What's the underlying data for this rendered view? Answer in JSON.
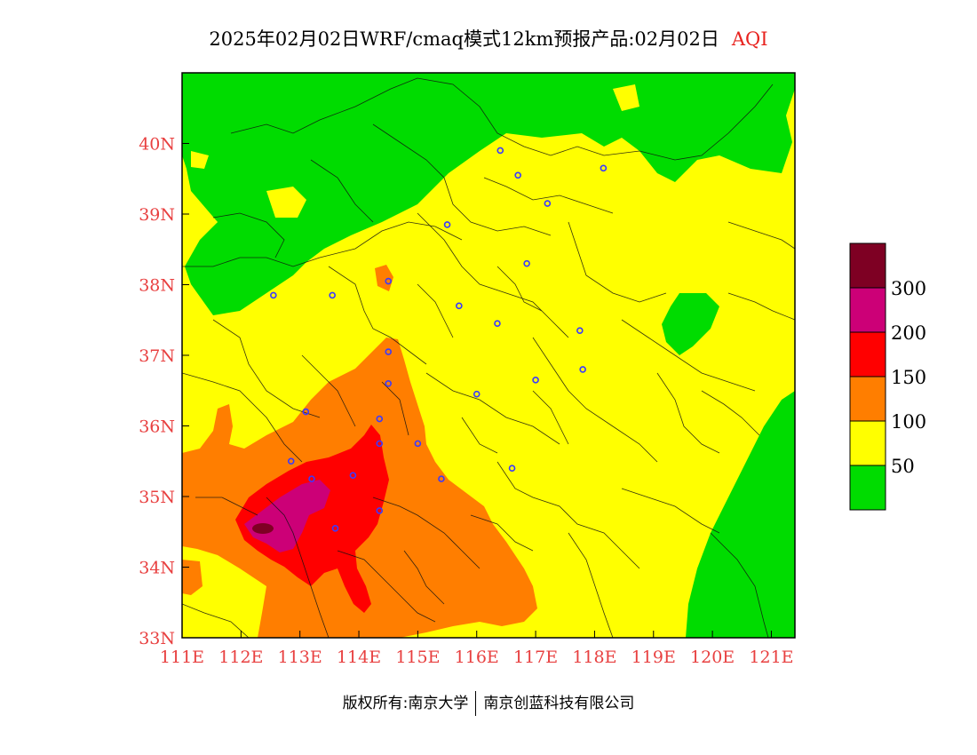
{
  "header": {
    "title": "2025年02月02日WRF/cmaq模式12km预报产品:02月02日",
    "variable": "AQI"
  },
  "map": {
    "lon_range": [
      111,
      121.4
    ],
    "lat_range": [
      33,
      41
    ],
    "lon_ticks": [
      "111E",
      "112E",
      "113E",
      "114E",
      "115E",
      "116E",
      "117E",
      "118E",
      "119E",
      "120E",
      "121E"
    ],
    "lat_ticks": [
      "33N",
      "34N",
      "35N",
      "36N",
      "37N",
      "38N",
      "39N",
      "40N"
    ],
    "city_markers": [
      [
        116.4,
        39.9
      ],
      [
        116.7,
        39.55
      ],
      [
        118.15,
        39.65
      ],
      [
        117.2,
        39.15
      ],
      [
        115.5,
        38.85
      ],
      [
        116.85,
        38.3
      ],
      [
        114.5,
        38.05
      ],
      [
        112.55,
        37.85
      ],
      [
        113.55,
        37.85
      ],
      [
        115.7,
        37.7
      ],
      [
        116.35,
        37.45
      ],
      [
        117.75,
        37.35
      ],
      [
        114.5,
        37.05
      ],
      [
        117.8,
        36.8
      ],
      [
        117.0,
        36.65
      ],
      [
        114.5,
        36.6
      ],
      [
        116.0,
        36.45
      ],
      [
        113.1,
        36.2
      ],
      [
        114.35,
        36.1
      ],
      [
        114.35,
        35.75
      ],
      [
        115.0,
        35.75
      ],
      [
        112.85,
        35.5
      ],
      [
        116.6,
        35.4
      ],
      [
        113.2,
        35.25
      ],
      [
        113.9,
        35.3
      ],
      [
        115.4,
        35.25
      ],
      [
        114.35,
        34.8
      ],
      [
        113.6,
        34.55
      ]
    ]
  },
  "legend": {
    "title": "AQI",
    "bins": [
      {
        "min": 0,
        "max": 50,
        "color": "#00dc00"
      },
      {
        "min": 50,
        "max": 100,
        "color": "#ffff00"
      },
      {
        "min": 100,
        "max": 150,
        "color": "#ff7e00"
      },
      {
        "min": 150,
        "max": 200,
        "color": "#ff0000"
      },
      {
        "min": 200,
        "max": 300,
        "color": "#cc0077"
      },
      {
        "min": 300,
        "max": 500,
        "color": "#7e0023"
      }
    ],
    "labels": [
      "50",
      "100",
      "150",
      "200",
      "300"
    ]
  },
  "footer": {
    "left": "版权所有:南京大学",
    "right": "南京创蓝科技有限公司"
  }
}
